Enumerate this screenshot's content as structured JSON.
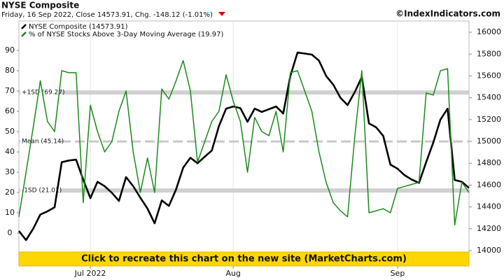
{
  "chart_data": {
    "type": "line",
    "title": "NYSE Composite",
    "subtitle": "Friday, 16 Sep 2022, Close 14573.91, Chg. -148.12 (-1.01%)",
    "source": "©IndexIndicators.com",
    "banner": "Click to recreate this chart on the new site (MarketCharts.com)",
    "x": [
      0,
      1,
      2,
      3,
      4,
      5,
      6,
      7,
      8,
      9,
      10,
      11,
      12,
      13,
      14,
      15,
      16,
      17,
      18,
      19,
      20,
      21,
      22,
      23,
      24,
      25,
      26,
      27,
      28,
      29,
      30,
      31,
      32,
      33,
      34,
      35,
      36,
      37,
      38,
      39,
      40,
      41,
      42,
      43,
      44,
      45,
      46,
      47,
      48,
      49,
      50,
      51,
      52,
      53,
      54,
      55,
      56,
      57,
      58,
      59,
      60,
      61,
      62,
      63
    ],
    "xlim": [
      0,
      63
    ],
    "xticks": [
      {
        "value": 10,
        "label": "Jul 2022"
      },
      {
        "value": 30,
        "label": "Aug"
      },
      {
        "value": 53,
        "label": "Sep"
      }
    ],
    "ylim": [
      -16.2,
      104.5
    ],
    "yticks": [
      0,
      10,
      20,
      30,
      40,
      50,
      60,
      70,
      80,
      90
    ],
    "y2lim": [
      13859,
      16103
    ],
    "y2ticks": [
      14000,
      14200,
      14400,
      14600,
      14800,
      15000,
      15200,
      15400,
      15600,
      15800,
      16000
    ],
    "grid": true,
    "series": [
      {
        "name": "NYSE Composite (14573.91)",
        "color": "#000000",
        "axis": "y2",
        "values": [
          14180,
          14096,
          14200,
          14330,
          14360,
          14397,
          14810,
          14825,
          14833,
          14650,
          14480,
          14630,
          14590,
          14530,
          14455,
          14673,
          14590,
          14485,
          14385,
          14250,
          14460,
          14410,
          14560,
          14760,
          14850,
          14800,
          14860,
          14917,
          15141,
          15300,
          15320,
          15305,
          15180,
          15300,
          15270,
          15295,
          15320,
          15256,
          15600,
          15814,
          15805,
          15795,
          15740,
          15600,
          15520,
          15400,
          15333,
          15450,
          15590,
          15165,
          15130,
          15050,
          14788,
          14750,
          14690,
          14650,
          14620,
          14810,
          14990,
          15200,
          15300,
          14647,
          14630,
          14573.91
        ]
      },
      {
        "name": "% of NYSE Stocks Above 3-Day Moving Average (19.97)",
        "color": "#1a8a1a",
        "values": [
          8,
          30,
          52,
          75,
          55,
          50,
          80,
          79,
          79,
          15,
          63,
          50,
          40,
          45,
          60,
          70,
          40,
          20,
          37,
          20,
          71,
          66,
          75,
          85,
          70,
          35,
          45,
          55,
          60,
          78,
          65,
          55,
          30,
          57,
          50,
          48,
          60,
          40,
          79,
          80,
          70,
          60,
          40,
          25,
          15,
          11,
          8,
          47,
          80,
          10,
          11,
          12,
          10,
          22,
          23,
          24,
          25,
          69,
          68,
          80,
          81,
          4,
          25,
          19.97
        ]
      }
    ],
    "bands": [
      {
        "label": "+1SD (69.27)",
        "value": 69.27
      },
      {
        "label": "Mean (45.14)",
        "value": 45.14
      },
      {
        "label": "-1SD (21.01)",
        "value": 21.01
      }
    ]
  }
}
